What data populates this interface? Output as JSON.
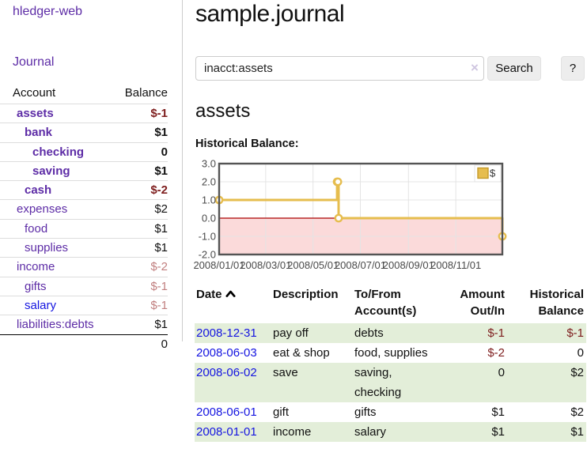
{
  "colors": {
    "link_purple": "#5d2ca6",
    "link_blue": "#1414e0",
    "negative_strong": "#7e1e1e",
    "negative_soft": "#c17f7f",
    "row_green": "#e3eed9",
    "chart_gold": "#e6bd4e",
    "chart_negative_bg": "#fbdada",
    "chart_zero_line": "#aa0000"
  },
  "sidebar": {
    "app_title": "hledger-web",
    "journal_label": "Journal",
    "account_header": "Account",
    "balance_header": "Balance",
    "accounts": [
      {
        "name": "assets",
        "balance": "$-1",
        "indent": 0,
        "bold": true,
        "balance_style": "neg-strong"
      },
      {
        "name": "bank",
        "balance": "$1",
        "indent": 1,
        "bold": true,
        "balance_style": "num-strong"
      },
      {
        "name": "checking",
        "balance": "0",
        "indent": 2,
        "bold": true,
        "balance_style": "num-strong"
      },
      {
        "name": "saving",
        "balance": "$1",
        "indent": 2,
        "bold": true,
        "balance_style": "num-strong"
      },
      {
        "name": "cash",
        "balance": "$-2",
        "indent": 1,
        "bold": true,
        "balance_style": "neg-strong"
      },
      {
        "name": "expenses",
        "balance": "$2",
        "indent": 0,
        "bold": false,
        "balance_style": "num"
      },
      {
        "name": "food",
        "balance": "$1",
        "indent": 1,
        "bold": false,
        "balance_style": "num"
      },
      {
        "name": "supplies",
        "balance": "$1",
        "indent": 1,
        "bold": false,
        "balance_style": "num"
      },
      {
        "name": "income",
        "balance": "$-2",
        "indent": 0,
        "bold": false,
        "balance_style": "neg-soft"
      },
      {
        "name": "gifts",
        "balance": "$-1",
        "indent": 1,
        "bold": false,
        "balance_style": "neg-soft"
      },
      {
        "name": "salary",
        "balance": "$-1",
        "indent": 1,
        "bold": false,
        "balance_style": "neg-soft",
        "link_color": "blue"
      },
      {
        "name": "liabilities:debts",
        "balance": "$1",
        "indent": 0,
        "bold": false,
        "balance_style": "num"
      }
    ],
    "total": "0"
  },
  "main": {
    "page_title": "sample.journal",
    "search": {
      "value": "inacct:assets",
      "clear_icon": "×",
      "button_label": "Search",
      "help_label": "?"
    },
    "account_heading": "assets",
    "section_label": "Historical Balance:"
  },
  "chart_data": {
    "type": "line",
    "step": true,
    "title": "Historical Balance",
    "series": [
      {
        "name": "$",
        "points": [
          [
            "2008-01-01",
            1
          ],
          [
            "2008-06-01",
            2
          ],
          [
            "2008-06-02",
            2
          ],
          [
            "2008-06-03",
            0
          ],
          [
            "2008-12-31",
            -1
          ]
        ]
      }
    ],
    "xlim": [
      "2008-01-01",
      "2008-12-31"
    ],
    "ylim": [
      -2,
      3
    ],
    "x_ticks": [
      "2008/01/01",
      "2008/03/01",
      "2008/05/01",
      "2008/07/01",
      "2008/09/01",
      "2008/11/01"
    ],
    "y_ticks": [
      3.0,
      2.0,
      1.0,
      0.0,
      -1.0,
      -2.0
    ],
    "grid": true,
    "legend_position": "top-right",
    "negative_region_shaded": true
  },
  "register": {
    "headers": {
      "date": "Date",
      "description": "Description",
      "account_line1": "To/From",
      "account_line2": "Account(s)",
      "amount_line1": "Amount",
      "amount_line2": "Out/In",
      "balance_line1": "Historical",
      "balance_line2": "Balance"
    },
    "rows": [
      {
        "date": "2008-12-31",
        "description": "pay off",
        "accounts": [
          "debts"
        ],
        "amount": "$-1",
        "amount_negative": true,
        "balance": "$-1",
        "balance_negative": true,
        "shaded": true
      },
      {
        "date": "2008-06-03",
        "description": "eat & shop",
        "accounts": [
          "food, supplies"
        ],
        "amount": "$-2",
        "amount_negative": true,
        "balance": "0",
        "balance_negative": false,
        "shaded": false
      },
      {
        "date": "2008-06-02",
        "description": "save",
        "accounts": [
          "saving,",
          "checking"
        ],
        "amount": "0",
        "amount_negative": false,
        "balance": "$2",
        "balance_negative": false,
        "shaded": true
      },
      {
        "date": "2008-06-01",
        "description": "gift",
        "accounts": [
          "gifts"
        ],
        "amount": "$1",
        "amount_negative": false,
        "balance": "$2",
        "balance_negative": false,
        "shaded": false
      },
      {
        "date": "2008-01-01",
        "description": "income",
        "accounts": [
          "salary"
        ],
        "amount": "$1",
        "amount_negative": false,
        "balance": "$1",
        "balance_negative": false,
        "shaded": true
      }
    ]
  }
}
